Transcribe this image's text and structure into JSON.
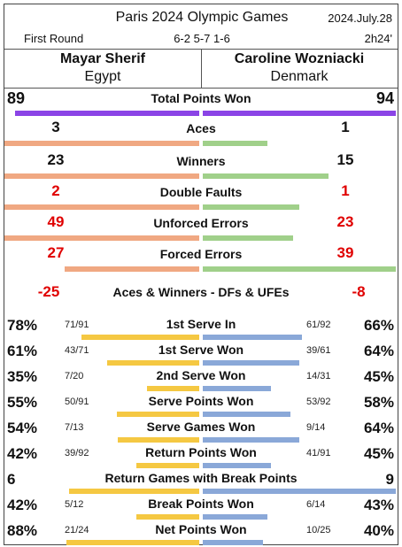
{
  "header": {
    "title": "Paris 2024 Olympic Games",
    "date": "2024.July.28",
    "round": "First Round",
    "score": "6-2 5-7 1-6",
    "duration": "2h24'"
  },
  "players": [
    {
      "name": "Mayar Sherif",
      "country": "Egypt"
    },
    {
      "name": "Caroline Wozniacki",
      "country": "Denmark"
    }
  ],
  "colors": {
    "total_bar": "#8b44e6",
    "p1_count_bar": "#f0a882",
    "p2_count_bar": "#a0d08a",
    "p1_pct_bar": "#f5c842",
    "p2_pct_bar": "#8aa8d8",
    "red_text": "#e00000"
  },
  "total_points": {
    "label": "Total Points Won",
    "p1": "89",
    "p2": "94",
    "p1_val": 89,
    "p2_val": 94
  },
  "count_stats": [
    {
      "label": "Aces",
      "p1": "3",
      "p2": "1",
      "p1_val": 3,
      "p2_val": 1,
      "red": false
    },
    {
      "label": "Winners",
      "p1": "23",
      "p2": "15",
      "p1_val": 23,
      "p2_val": 15,
      "red": false
    },
    {
      "label": "Double Faults",
      "p1": "2",
      "p2": "1",
      "p1_val": 2,
      "p2_val": 1,
      "red": true
    },
    {
      "label": "Unforced Errors",
      "p1": "49",
      "p2": "23",
      "p1_val": 49,
      "p2_val": 23,
      "red": true
    },
    {
      "label": "Forced Errors",
      "p1": "27",
      "p2": "39",
      "p1_val": 27,
      "p2_val": 39,
      "red": true
    }
  ],
  "net_stat": {
    "label": "Aces & Winners - DFs & UFEs",
    "p1": "-25",
    "p2": "-8"
  },
  "pct_stats": [
    {
      "label": "1st Serve In",
      "p1_pct": "78%",
      "p1_frac": "71/91",
      "p2_pct": "66%",
      "p2_frac": "61/92",
      "p1_val": 0.78,
      "p2_val": 0.66
    },
    {
      "label": "1st Serve Won",
      "p1_pct": "61%",
      "p1_frac": "43/71",
      "p2_pct": "64%",
      "p2_frac": "39/61",
      "p1_val": 0.61,
      "p2_val": 0.64
    },
    {
      "label": "2nd Serve Won",
      "p1_pct": "35%",
      "p1_frac": "7/20",
      "p2_pct": "45%",
      "p2_frac": "14/31",
      "p1_val": 0.35,
      "p2_val": 0.45
    },
    {
      "label": "Serve Points Won",
      "p1_pct": "55%",
      "p1_frac": "50/91",
      "p2_pct": "58%",
      "p2_frac": "53/92",
      "p1_val": 0.55,
      "p2_val": 0.58
    },
    {
      "label": "Serve Games Won",
      "p1_pct": "54%",
      "p1_frac": "7/13",
      "p2_pct": "64%",
      "p2_frac": "9/14",
      "p1_val": 0.54,
      "p2_val": 0.64
    },
    {
      "label": "Return Points Won",
      "p1_pct": "42%",
      "p1_frac": "39/92",
      "p2_pct": "45%",
      "p2_frac": "41/91",
      "p1_val": 0.42,
      "p2_val": 0.45
    },
    {
      "label": "Return Games with Break Points",
      "p1_pct": "6",
      "p1_frac": "",
      "p2_pct": "9",
      "p2_frac": "",
      "p1_val": 6,
      "p2_val": 9,
      "count": true
    },
    {
      "label": "Break Points Won",
      "p1_pct": "42%",
      "p1_frac": "5/12",
      "p2_pct": "43%",
      "p2_frac": "6/14",
      "p1_val": 0.42,
      "p2_val": 0.43
    },
    {
      "label": "Net Points Won",
      "p1_pct": "88%",
      "p1_frac": "21/24",
      "p2_pct": "40%",
      "p2_frac": "10/25",
      "p1_val": 0.88,
      "p2_val": 0.4
    }
  ]
}
